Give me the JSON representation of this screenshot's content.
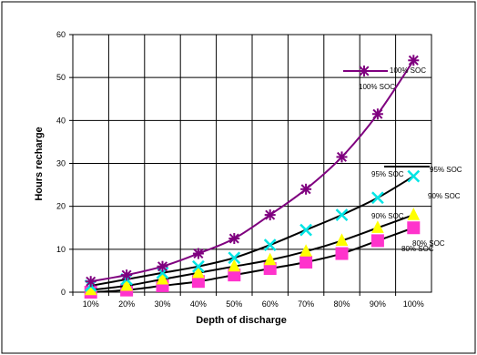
{
  "chart_data": {
    "type": "line",
    "title": "",
    "xlabel": "Depth of discharge",
    "ylabel": "Hours recharge",
    "ylim": [
      0,
      60
    ],
    "yticks": [
      0,
      10,
      20,
      30,
      40,
      50,
      60
    ],
    "grid": true,
    "legend_placement": "labels beside series",
    "categories": [
      "10%",
      "20%",
      "30%",
      "40%",
      "50%",
      "60%",
      "70%",
      "80%",
      "90%",
      "100%"
    ],
    "series": [
      {
        "name": "100% SOC",
        "values": [
          2.5,
          4,
          6,
          9,
          12.5,
          18,
          24,
          31.5,
          41.5,
          54
        ],
        "line_color": "#7f007f",
        "marker_color": "#7f007f",
        "marker": "star",
        "label_texts": [
          "100% SOC",
          "100% SOC"
        ]
      },
      {
        "name": "95% SOC",
        "values": [
          1.5,
          3,
          4.5,
          6,
          8,
          11,
          14.5,
          18,
          22,
          27
        ],
        "line_color": "#000000",
        "marker_color": "#00e5e5",
        "marker": "x",
        "label_texts": [
          "95% SOC",
          "95% SOC"
        ]
      },
      {
        "name": "90% SOC",
        "values": [
          0.5,
          1.5,
          3,
          4.5,
          6,
          7.5,
          9.5,
          12,
          15,
          18
        ],
        "line_color": "#000000",
        "marker_color": "#ffff00",
        "marker": "triangle",
        "label_texts": [
          "90% SOC",
          "90% SOC"
        ]
      },
      {
        "name": "80% SOC",
        "values": [
          0,
          0.5,
          1.5,
          2.5,
          4,
          5.5,
          7,
          9,
          12,
          15
        ],
        "line_color": "#000000",
        "marker_color": "#ff33cc",
        "marker": "square",
        "label_texts": [
          "80% SOC",
          "80% SOC"
        ]
      }
    ]
  }
}
